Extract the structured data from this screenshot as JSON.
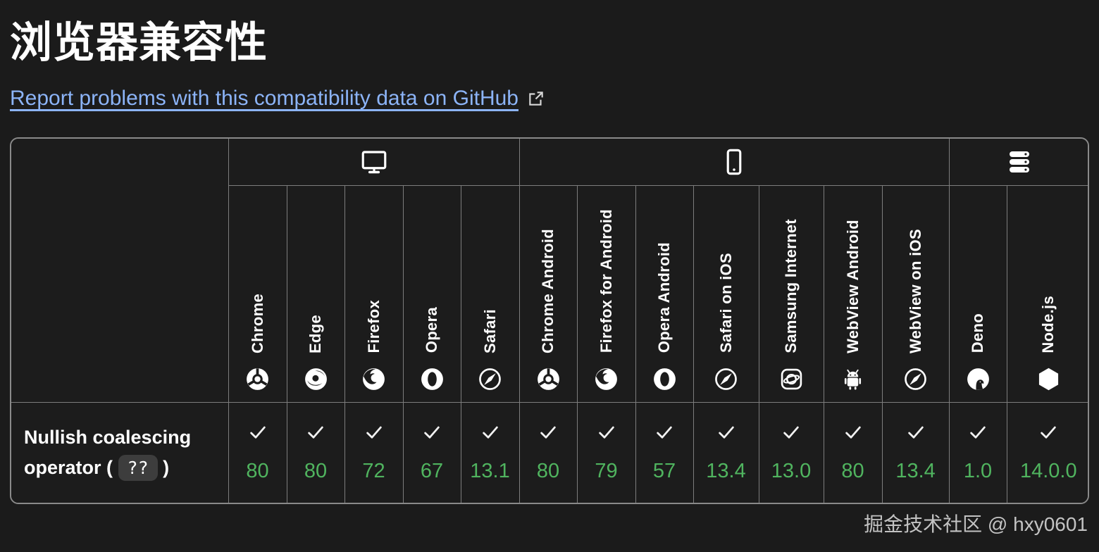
{
  "page": {
    "title": "浏览器兼容性",
    "report_link_label": "Report problems with this compatibility data on GitHub",
    "watermark": "掘金技术社区 @ hxy0601"
  },
  "colors": {
    "background": "#1b1b1b",
    "cell_background": "#1c1c1c",
    "grid_border": "#7d7d7d",
    "outer_border": "#8a8a8a",
    "link_blue": "#8cb4f8",
    "support_green": "#50b45f",
    "code_chip_background": "#3d3d3d",
    "text": "#ffffff"
  },
  "table": {
    "platforms": [
      {
        "label": "desktop",
        "icon": "desktop-icon",
        "colspan": 5
      },
      {
        "label": "mobile",
        "icon": "mobile-icon",
        "colspan": 7
      },
      {
        "label": "server",
        "icon": "server-icon",
        "colspan": 2
      }
    ],
    "browsers": [
      {
        "label": "Chrome",
        "icon": "chrome-icon"
      },
      {
        "label": "Edge",
        "icon": "edge-icon"
      },
      {
        "label": "Firefox",
        "icon": "firefox-icon"
      },
      {
        "label": "Opera",
        "icon": "opera-icon"
      },
      {
        "label": "Safari",
        "icon": "safari-icon"
      },
      {
        "label": "Chrome Android",
        "icon": "chrome-icon"
      },
      {
        "label": "Firefox for Android",
        "icon": "firefox-icon"
      },
      {
        "label": "Opera Android",
        "icon": "opera-icon"
      },
      {
        "label": "Safari on iOS",
        "icon": "safari-icon"
      },
      {
        "label": "Samsung Internet",
        "icon": "samsung-internet-icon"
      },
      {
        "label": "WebView Android",
        "icon": "android-icon"
      },
      {
        "label": "WebView on iOS",
        "icon": "safari-icon"
      },
      {
        "label": "Deno",
        "icon": "deno-icon"
      },
      {
        "label": "Node.js",
        "icon": "nodejs-icon"
      }
    ],
    "feature": {
      "text_before_code": "Nullish coalescing operator ( ",
      "code": "??",
      "text_after_code": " )"
    },
    "support": [
      {
        "browser": "Chrome",
        "supported": true,
        "version": "80"
      },
      {
        "browser": "Edge",
        "supported": true,
        "version": "80"
      },
      {
        "browser": "Firefox",
        "supported": true,
        "version": "72"
      },
      {
        "browser": "Opera",
        "supported": true,
        "version": "67"
      },
      {
        "browser": "Safari",
        "supported": true,
        "version": "13.1"
      },
      {
        "browser": "Chrome Android",
        "supported": true,
        "version": "80"
      },
      {
        "browser": "Firefox for Android",
        "supported": true,
        "version": "79"
      },
      {
        "browser": "Opera Android",
        "supported": true,
        "version": "57"
      },
      {
        "browser": "Safari on iOS",
        "supported": true,
        "version": "13.4"
      },
      {
        "browser": "Samsung Internet",
        "supported": true,
        "version": "13.0"
      },
      {
        "browser": "WebView Android",
        "supported": true,
        "version": "80"
      },
      {
        "browser": "WebView on iOS",
        "supported": true,
        "version": "13.4"
      },
      {
        "browser": "Deno",
        "supported": true,
        "version": "1.0"
      },
      {
        "browser": "Node.js",
        "supported": true,
        "version": "14.0.0"
      }
    ]
  }
}
